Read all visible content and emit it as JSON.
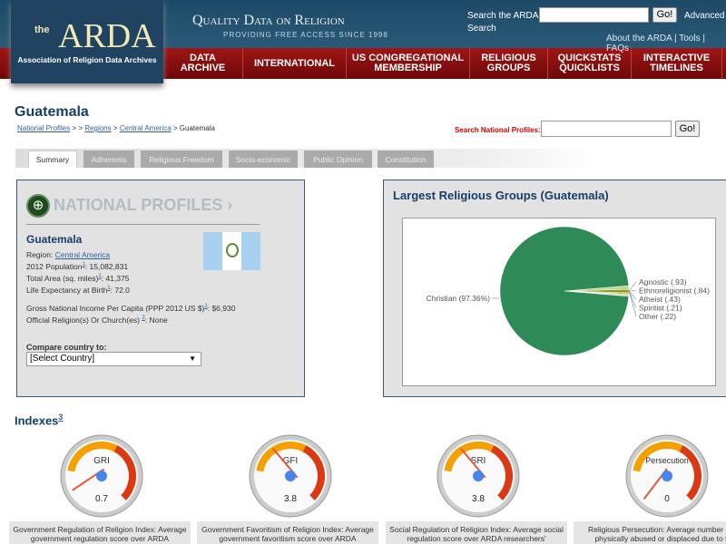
{
  "header": {
    "logo_the": "the",
    "logo_name": "ARDA",
    "logo_sub": "Association of Religion Data Archives",
    "tagline": "Quality Data on Religion",
    "tagline_sub": "PROVIDING FREE ACCESS SINCE 1998",
    "search_label": "Search the ARDA",
    "search_label2": "Search",
    "go": "Go!",
    "advanced": "Advanced",
    "links": "About the ARDA | Tools | FAQs"
  },
  "nav": [
    {
      "l1": "DATA",
      "l2": "ARCHIVE"
    },
    {
      "l1": "INTERNATIONAL",
      "l2": ""
    },
    {
      "l1": "US CONGREGATIONAL",
      "l2": "MEMBERSHIP"
    },
    {
      "l1": "RELIGIOUS",
      "l2": "GROUPS"
    },
    {
      "l1": "QUICKSTATS",
      "l2": "QUICKLISTS"
    },
    {
      "l1": "INTERACTIVE",
      "l2": "TIMELINES"
    }
  ],
  "page": {
    "title": "Guatemala",
    "crumb": {
      "np": "National Profiles",
      "sep1": " > > ",
      "regions": "Regions",
      "sep2": " > ",
      "ca": "Central America",
      "sep3": " > ",
      "current": "Guatemala"
    },
    "np_search_label": "Search National Profiles:",
    "go": "Go!"
  },
  "tabs": [
    "Summary",
    "Adherents",
    "Religious Freedom",
    "Socio-economic",
    "Public Opinion",
    "Constitution"
  ],
  "profile": {
    "banner": "NATIONAL PROFILES ›",
    "country": "Guatemala",
    "region_label": "Region: ",
    "region": "Central America",
    "pop_label": "2012 Population",
    "pop": ": 15,082,831",
    "area_label": "Total Area (sq. miles)",
    "area": ": 41,375",
    "life_label": "Life Expectancy at Birth",
    "life": ": 72.0",
    "gni_label": "Gross National Income Per Capita (PPP 2012 US $)",
    "gni": ": $6,930",
    "official_label": "Official Religion(s) Or Church(es) ",
    "official": ": None",
    "fn1": "1",
    "fn2": "2",
    "compare_label": "Compare country to:",
    "compare_value": "[Select Country]"
  },
  "chart_data": {
    "type": "pie",
    "title": "Largest Religious Groups (Guatemala)",
    "slices": [
      {
        "label": "Christian (97.36%)",
        "value": 97.36,
        "color": "#2e8b57"
      },
      {
        "label": "Agnostic (.93)",
        "value": 0.93,
        "color": "#b9d98a"
      },
      {
        "label": "Ethnoreligionist (.84)",
        "value": 0.84,
        "color": "#8a9a2a"
      },
      {
        "label": "Atheist (.43)",
        "value": 0.43,
        "color": "#d4c640"
      },
      {
        "label": "Spiritist (.21)",
        "value": 0.21,
        "color": "#5a8a3a"
      },
      {
        "label": "Other (.22)",
        "value": 0.22,
        "color": "#9fc7a0"
      }
    ]
  },
  "indexes": {
    "title": "Indexes",
    "fn": "3",
    "gauges": [
      {
        "label": "GRI",
        "value": 0.7,
        "display": "0.7",
        "desc": "Government Regulation of Religion Index: Average government regulation score over ARDA"
      },
      {
        "label": "GFI",
        "value": 3.8,
        "display": "3.8",
        "desc": "Government Favoritism of Religion Index: Average government favoritism score over ARDA"
      },
      {
        "label": "SRI",
        "value": 3.8,
        "display": "3.8",
        "desc": "Social Regulation of Religion Index: Average social regulation score over ARDA researchers'"
      },
      {
        "label": "Persecution",
        "value": 0,
        "display": "0",
        "desc": "Religious Persecution: Average number of ... physically abused or displaced due to t..."
      }
    ]
  }
}
